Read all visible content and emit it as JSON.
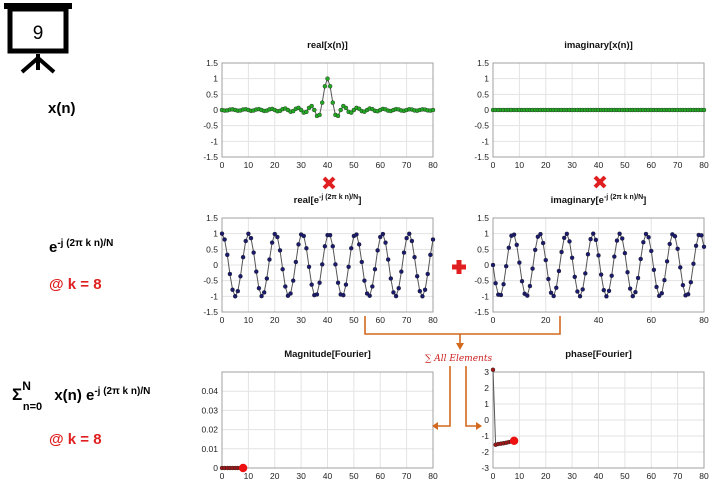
{
  "slide": {
    "number": "9"
  },
  "left_labels": {
    "xn": "x(n)",
    "exp_base": "e",
    "exp_power": "-j (2π k n)/N",
    "at_k_1": "@ k = 8",
    "sum_sigma": "Σ",
    "sum_top": "N",
    "sum_bottom": "n=0",
    "sum_x": "x(n) e",
    "sum_power": "-j (2π k n)/N",
    "at_k_2": "@ k = 8"
  },
  "annotation": {
    "sum_label": "∑ All Elements"
  },
  "colors": {
    "green": "#22aa22",
    "navy": "#1a1a6e",
    "red": "#e02020",
    "arrow": "#d2691e"
  },
  "chart_data": [
    {
      "id": "real-x",
      "type": "line",
      "title": "real[x(n)]",
      "title_sup": "",
      "title_end": "",
      "xlim": [
        0,
        80
      ],
      "ylim": [
        -1.5,
        1.5
      ],
      "xticks": [
        0,
        10,
        20,
        30,
        40,
        50,
        60,
        70,
        80
      ],
      "yticks": [
        1.5,
        1,
        0.5,
        0,
        -0.5,
        -1,
        -1.5
      ],
      "grid": true,
      "generator": "sinc",
      "series": [
        {
          "n": 81,
          "center": 40,
          "period": 2.5,
          "marker_color": "#22aa22"
        }
      ]
    },
    {
      "id": "imag-x",
      "type": "line",
      "title": "imaginary[x(n)]",
      "title_sup": "",
      "title_end": "",
      "xlim": [
        0,
        80
      ],
      "ylim": [
        -1.5,
        1.5
      ],
      "xticks": [
        0,
        10,
        20,
        30,
        40,
        50,
        60,
        70,
        80
      ],
      "yticks": [
        1.5,
        1,
        0.5,
        0,
        -0.5,
        -1,
        -1.5
      ],
      "grid": true,
      "generator": "zero",
      "series": [
        {
          "n": 81,
          "marker_color": "#22aa22"
        }
      ]
    },
    {
      "id": "real-e",
      "type": "line",
      "title": "real[e",
      "title_sup": "-j (2π k n)/N",
      "title_end": "]",
      "xlim": [
        0,
        80
      ],
      "ylim": [
        -1.5,
        1.5
      ],
      "xticks": [
        0,
        10,
        20,
        30,
        40,
        50,
        60,
        70,
        80
      ],
      "yticks": [
        1.5,
        1,
        0.5,
        0,
        -0.5,
        -1,
        -1.5
      ],
      "grid": true,
      "generator": "cos",
      "series": [
        {
          "n": 81,
          "k": 8,
          "N": 81,
          "marker_color": "#1a1a6e"
        }
      ]
    },
    {
      "id": "imag-e",
      "type": "line",
      "title": "imaginary[e",
      "title_sup": "-j (2π k n)/N",
      "title_end": "]",
      "xlim": [
        0,
        80
      ],
      "ylim": [
        -1.5,
        1.5
      ],
      "xticks": [
        0,
        20,
        40,
        60,
        80
      ],
      "yticks": [
        1.5,
        1,
        0.5,
        0,
        -0.5,
        -1,
        -1.5
      ],
      "grid": true,
      "generator": "negsin",
      "series": [
        {
          "n": 81,
          "k": 8,
          "N": 81,
          "marker_color": "#1a1a6e"
        }
      ]
    },
    {
      "id": "magnitude",
      "type": "line",
      "title": "Magnitude[Fourier]",
      "title_sup": "",
      "title_end": "",
      "xlim": [
        0,
        80
      ],
      "ylim": [
        0,
        0.05
      ],
      "xticks": [
        0,
        10,
        20,
        30,
        40,
        50,
        60,
        70,
        80
      ],
      "yticks": [
        0.04,
        0.03,
        0.02,
        0.01,
        0
      ],
      "grid": true,
      "generator": "explicit",
      "series": [
        {
          "x": [
            0,
            1,
            2,
            3,
            4,
            5,
            6,
            7,
            8
          ],
          "y": [
            0,
            0,
            0,
            0,
            0,
            0,
            0,
            0,
            0
          ],
          "marker_color": "#a01818",
          "highlight": {
            "x": 8,
            "y": 0
          }
        }
      ]
    },
    {
      "id": "phase",
      "type": "line",
      "title": "phase[Fourier]",
      "title_sup": "",
      "title_end": "",
      "xlim": [
        0,
        80
      ],
      "ylim": [
        -3,
        3
      ],
      "xticks": [
        0,
        10,
        20,
        30,
        40,
        50,
        60,
        70,
        80
      ],
      "yticks": [
        3,
        2,
        1,
        0,
        -1,
        -2,
        -3
      ],
      "grid": true,
      "generator": "explicit",
      "series": [
        {
          "x": [
            0,
            1,
            2,
            3,
            4,
            5,
            6,
            7,
            8
          ],
          "y": [
            3.14,
            -1.55,
            -1.5,
            -1.48,
            -1.45,
            -1.42,
            -1.38,
            -1.34,
            -1.3
          ],
          "marker_color": "#a01818",
          "highlight": {
            "x": 8,
            "y": -1.3
          }
        }
      ]
    }
  ]
}
